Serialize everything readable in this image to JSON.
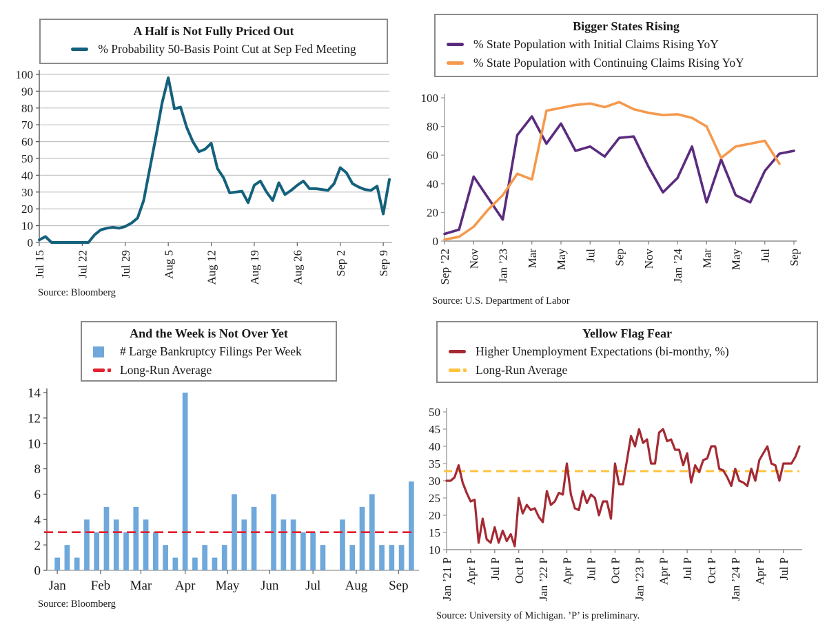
{
  "chart_data": [
    {
      "type": "line",
      "title": "A Half is Not Fully Priced Out",
      "source": "Source: Bloomberg",
      "legend": [
        {
          "label": "% Probability 50-Basis Point Cut at Sep Fed Meeting",
          "color": "#14617C",
          "swatch": "line"
        }
      ],
      "ylim": [
        0,
        100
      ],
      "ytick_step": 10,
      "grid": true,
      "legend_position": "top-box",
      "x_tick_labels": [
        "Jul 15",
        "Jul 22",
        "Jul 29",
        "Aug 5",
        "Aug 12",
        "Aug 19",
        "Aug 26",
        "Sep 2",
        "Sep 9"
      ],
      "x_tick_positions": [
        0,
        7,
        14,
        21,
        28,
        35,
        42,
        49,
        56
      ],
      "series": [
        {
          "name": "% Probability 50-Basis Point Cut at Sep Fed Meeting",
          "color": "#14617C",
          "values": [
            1.5,
            3.5,
            0,
            0,
            0,
            0,
            0,
            0,
            0,
            4.5,
            7.5,
            8.5,
            9,
            8.5,
            9.5,
            11.5,
            14.5,
            25,
            44,
            63,
            83,
            98,
            79.5,
            80.5,
            68.5,
            60,
            54,
            55.5,
            59,
            44,
            38.5,
            29.5,
            30,
            30.5,
            23.7,
            34,
            36.5,
            30,
            25,
            35.5,
            28.5,
            31,
            34,
            36.5,
            32,
            32,
            31.5,
            31,
            35,
            44.5,
            41.5,
            35,
            33,
            31.5,
            31,
            33.5,
            17,
            37.5
          ]
        }
      ]
    },
    {
      "type": "line",
      "title": "Bigger States Rising",
      "source": "Source: U.S. Department of Labor",
      "legend": [
        {
          "label": "% State Population with Initial Claims Rising YoY",
          "color": "#5B2C7E",
          "swatch": "line"
        },
        {
          "label": "% State Population with Continuing Claims Rising YoY",
          "color": "#F5994D",
          "swatch": "line"
        }
      ],
      "ylim": [
        0,
        100
      ],
      "ytick_step": 20,
      "grid": false,
      "legend_position": "top-box",
      "x_tick_labels": [
        "Sep ’22",
        "Nov",
        "Jan ’23",
        "Mar",
        "May",
        "Jul",
        "Sep",
        "Nov",
        "Jan ’24",
        "Mar",
        "May",
        "Jul",
        "Sep"
      ],
      "x_tick_positions": [
        0,
        2,
        4,
        6,
        8,
        10,
        12,
        14,
        16,
        18,
        20,
        22,
        24
      ],
      "series": [
        {
          "name": "% State Population with Initial Claims Rising YoY",
          "color": "#5B2C7E",
          "values": [
            5,
            8,
            45,
            30,
            15,
            74,
            87,
            68,
            82,
            63,
            66,
            59,
            72,
            73,
            52,
            34,
            44,
            66,
            27,
            57,
            32,
            27,
            49,
            61,
            63
          ]
        },
        {
          "name": "% State Population with Continuing Claims Rising YoY",
          "color": "#F5994D",
          "values": [
            1,
            3,
            10,
            22,
            32,
            47,
            43,
            91,
            93,
            95,
            96,
            93.5,
            97,
            92,
            89.5,
            88,
            88.5,
            86,
            80,
            58,
            66,
            68,
            70,
            54,
            null
          ]
        }
      ]
    },
    {
      "type": "bar",
      "title": "And the Week is Not Over Yet",
      "source": "Source: Bloomberg",
      "legend": [
        {
          "label": "# Large Bankruptcy Filings Per Week",
          "color": "#6FA8DB",
          "swatch": "square"
        },
        {
          "label": "Long-Run Average",
          "color": "#E31E2D",
          "swatch": "dashdot"
        }
      ],
      "ylim": [
        0,
        14
      ],
      "ytick_step": 2,
      "grid": false,
      "legend_position": "top-box",
      "bar_color": "#6FA8DB",
      "x_tick_labels": [
        "Jan",
        "Feb",
        "Mar",
        "Apr",
        "May",
        "Jun",
        "Jul",
        "Aug",
        "Sep"
      ],
      "x_tick_positions": [
        0,
        4.4,
        8.5,
        13,
        17.3,
        21.6,
        26,
        30.4,
        34.7
      ],
      "values": [
        1,
        2,
        1,
        4,
        3,
        5,
        4,
        3,
        5,
        4,
        3,
        2,
        1,
        14,
        1,
        2,
        1,
        2,
        6,
        4,
        5,
        0,
        6,
        4,
        4,
        3,
        3,
        2,
        0,
        4,
        2,
        5,
        6,
        2,
        2,
        2,
        7
      ],
      "average": {
        "label": "Long-Run Average",
        "value": 3,
        "color": "#E31E2D"
      }
    },
    {
      "type": "line",
      "title": "Yellow Flag Fear",
      "source": "Source: University of Michigan. ’P’ is preliminary.",
      "legend": [
        {
          "label": "Higher Unemployment Expectations (bi-monthy, %)",
          "color": "#A42A33",
          "swatch": "line"
        },
        {
          "label": "Long-Run Average",
          "color": "#FEC23D",
          "swatch": "dashdot"
        }
      ],
      "ylim": [
        10,
        50
      ],
      "ytick_step": 5,
      "grid": false,
      "legend_position": "top-box",
      "x_tick_labels": [
        "Jan ’21 P",
        "Apr P",
        "Jul P",
        "Oct P",
        "Jan ’22 P",
        "Apr P",
        "Jul P",
        "Oct P",
        "Jan ’23 P",
        "Apr P",
        "Jul P",
        "Oct P",
        "Jan ’24 P",
        "Apr P",
        "Jul P"
      ],
      "x_tick_positions": [
        0,
        6,
        12,
        18,
        24,
        30,
        36,
        42,
        48,
        54,
        60,
        66,
        72,
        78,
        84
      ],
      "series": [
        {
          "name": "Higher Unemployment Expectations (bi-monthy, %)",
          "color": "#A42A33",
          "values": [
            30,
            30,
            31,
            34.5,
            29.5,
            26.5,
            24,
            24.5,
            12,
            19,
            13,
            12,
            16.5,
            12,
            15.5,
            12.5,
            14.5,
            11,
            25,
            20.5,
            23,
            21.5,
            22,
            19.5,
            18,
            27,
            23,
            24,
            26.5,
            26,
            35,
            26,
            22,
            21.5,
            27,
            23.5,
            26,
            25,
            20,
            24,
            24,
            19,
            35,
            29,
            29,
            36,
            43,
            40,
            45,
            41,
            42,
            35,
            35,
            44,
            45,
            41.5,
            42,
            39,
            39,
            34.5,
            38,
            29.5,
            34.5,
            32.5,
            36,
            36.5,
            40,
            40,
            33.5,
            33,
            31,
            28.5,
            33.5,
            30,
            29.5,
            28.5,
            33.5,
            30,
            36,
            38,
            40,
            35,
            34.5,
            30,
            35,
            35,
            35,
            37,
            40
          ]
        }
      ],
      "average": {
        "label": "Long-Run Average",
        "value": 32.8,
        "color": "#FEC23D"
      }
    }
  ]
}
